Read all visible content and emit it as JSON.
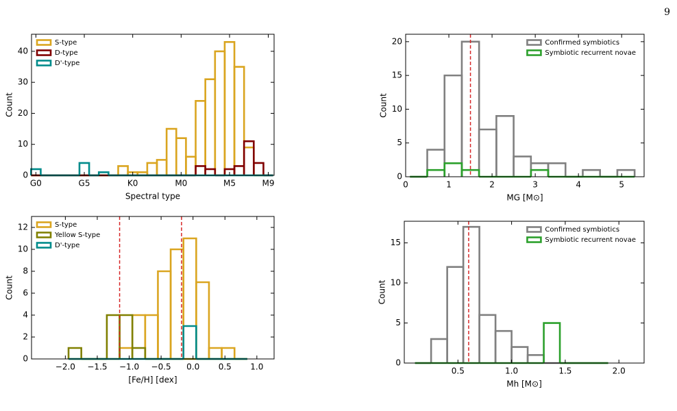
{
  "page_number": "9",
  "chart_data": [
    {
      "type": "histogram",
      "xlabel": "Spectral type",
      "ylabel": "Count",
      "bins": [
        -0.5,
        0.5,
        1.5,
        2.5,
        3.5,
        4.5,
        5.5,
        6.5,
        7.5,
        8.5,
        9.5,
        10.5,
        11.5,
        12.5,
        13.5,
        14.5,
        15.5,
        16.5,
        17.5,
        18.5,
        19.5,
        20.5,
        21.5,
        22.5,
        23.5,
        24.5
      ],
      "xlim": [
        -0.45,
        24.6
      ],
      "xticks": [
        {
          "value": 0,
          "label": "G0"
        },
        {
          "value": 5,
          "label": "G5"
        },
        {
          "value": 10,
          "label": "K0"
        },
        {
          "value": 15,
          "label": "M0"
        },
        {
          "value": 20,
          "label": "M5"
        },
        {
          "value": 24,
          "label": "M9"
        }
      ],
      "ylim": [
        0,
        45.5
      ],
      "yticks": [
        0,
        10,
        20,
        30,
        40
      ],
      "legend": "upper left",
      "series": [
        {
          "name": "S-type",
          "color": "#daa520",
          "values": [
            0,
            0,
            0,
            0,
            0,
            0,
            0,
            0,
            0,
            3,
            1,
            1,
            4,
            5,
            15,
            12,
            6,
            24,
            31,
            40,
            43,
            35,
            9,
            0,
            0
          ]
        },
        {
          "name": "D-type",
          "color": "#800000",
          "values": [
            0,
            0,
            0,
            0,
            0,
            0,
            0,
            0,
            0,
            0,
            0,
            0,
            0,
            0,
            0,
            0,
            0,
            3,
            2,
            0,
            2,
            3,
            11,
            4,
            0
          ]
        },
        {
          "name": "D'-type",
          "color": "#008b8b",
          "values": [
            2,
            0,
            0,
            0,
            0,
            4,
            0,
            1,
            0,
            0,
            0,
            0,
            0,
            0,
            0,
            0,
            0,
            0,
            0,
            0,
            0,
            0,
            0,
            0,
            0
          ]
        }
      ]
    },
    {
      "type": "histogram",
      "xlabel": "[Fe/H] [dex]",
      "ylabel": "Count",
      "bins": [
        -1.95,
        -1.75,
        -1.55,
        -1.35,
        -1.15,
        -0.95,
        -0.75,
        -0.55,
        -0.35,
        -0.15,
        0.05,
        0.25,
        0.45,
        0.65,
        0.85
      ],
      "xlim": [
        -2.53,
        1.27
      ],
      "xticks": [
        {
          "value": -2,
          "label": "−2.0"
        },
        {
          "value": -1.5,
          "label": "−1.5"
        },
        {
          "value": -1,
          "label": "−1.0"
        },
        {
          "value": -0.5,
          "label": "−0.5"
        },
        {
          "value": 0,
          "label": "0.0"
        },
        0.5,
        {
          "value": 1,
          "label": "1.0"
        }
      ],
      "ylim": [
        0,
        13
      ],
      "yticks": [
        0,
        2,
        4,
        6,
        8,
        10,
        12
      ],
      "legend": "upper left",
      "vlines": [
        -1.15,
        -0.18
      ],
      "vline_color": "#d62728",
      "series": [
        {
          "name": "S-type",
          "color": "#daa520",
          "values": [
            0,
            0,
            0,
            0,
            1,
            4,
            4,
            8,
            10,
            11,
            7,
            1,
            1,
            0
          ]
        },
        {
          "name": "Yellow S-type",
          "color": "#808000",
          "values": [
            1,
            0,
            0,
            4,
            4,
            1,
            0,
            0,
            0,
            0,
            0,
            0,
            0,
            0
          ]
        },
        {
          "name": "D'-type",
          "color": "#008b8b",
          "values": [
            0,
            0,
            0,
            0,
            0,
            0,
            0,
            0,
            0,
            3,
            0,
            0,
            0,
            0
          ]
        }
      ]
    },
    {
      "type": "histogram",
      "xlabel": "MG [M⊙]",
      "ylabel": "Count",
      "bins": [
        0.1,
        0.5,
        0.9,
        1.3,
        1.7,
        2.1,
        2.5,
        2.9,
        3.3,
        3.7,
        4.1,
        4.5,
        4.9,
        5.3
      ],
      "xlim": [
        0,
        5.52
      ],
      "xticks": [
        0,
        1,
        2,
        3,
        4,
        5
      ],
      "ylim": [
        0,
        21.1
      ],
      "yticks": [
        0,
        5,
        10,
        15,
        20
      ],
      "legend": "upper right",
      "vlines": [
        1.5
      ],
      "vline_color": "#d62728",
      "series": [
        {
          "name": "Confirmed symbiotics",
          "color": "#808080",
          "values": [
            0,
            4,
            15,
            20,
            7,
            9,
            3,
            2,
            2,
            0,
            1,
            0,
            1
          ]
        },
        {
          "name": "Symbiotic recurrent novae",
          "color": "#2ca02c",
          "values": [
            0,
            1,
            2,
            1,
            0,
            0,
            0,
            1,
            0,
            0,
            0,
            0,
            0
          ]
        }
      ]
    },
    {
      "type": "histogram",
      "xlabel": "Mh [M⊙]",
      "ylabel": "Count",
      "bins": [
        0.1,
        0.25,
        0.4,
        0.55,
        0.7,
        0.85,
        1.0,
        1.15,
        1.3,
        1.45,
        1.6,
        1.75,
        1.9
      ],
      "xlim": [
        0,
        2.235
      ],
      "xticks": [
        0.5,
        {
          "value": 1,
          "label": "1.0"
        },
        1.5,
        {
          "value": 2,
          "label": "2.0"
        }
      ],
      "ylim": [
        0,
        17.7
      ],
      "yticks": [
        0,
        5,
        10,
        15
      ],
      "legend": "upper right",
      "vlines": [
        0.6
      ],
      "vline_color": "#d62728",
      "series": [
        {
          "name": "Confirmed symbiotics",
          "color": "#808080",
          "values": [
            0,
            3,
            12,
            17,
            6,
            4,
            2,
            1,
            0,
            0,
            0,
            0
          ]
        },
        {
          "name": "Symbiotic recurrent novae",
          "color": "#2ca02c",
          "values": [
            0,
            0,
            0,
            0,
            0,
            0,
            0,
            0,
            5,
            0,
            0,
            0
          ]
        }
      ]
    }
  ]
}
